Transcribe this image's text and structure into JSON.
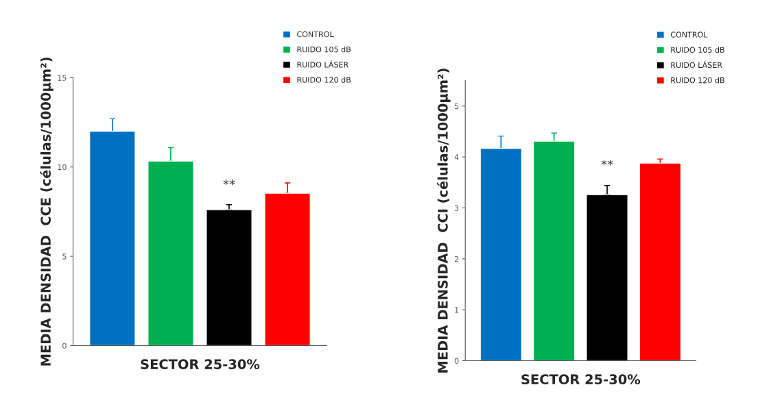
{
  "chart_data": [
    {
      "type": "bar",
      "categories": [
        null
      ],
      "xlabel": "SECTOR 25-30%",
      "ylabel": "MEDIA DENSIDAD  CCE (células/1000µm²)",
      "ylim": [
        0,
        15
      ],
      "yticks": [
        0,
        5,
        10,
        15
      ],
      "legend": "top right",
      "grid": false,
      "annotations": [
        "**"
      ],
      "series": [
        {
          "name": "CONTROL",
          "color": "#0070c0",
          "values": [
            12.0
          ],
          "errors": [
            0.7
          ]
        },
        {
          "name": "RUIDO 105 dB",
          "color": "#00b050",
          "values": [
            10.33
          ],
          "errors": [
            0.75
          ]
        },
        {
          "name": "RUIDO LÁSER",
          "color": "#000000",
          "values": [
            7.61
          ],
          "errors": [
            0.28
          ]
        },
        {
          "name": "RUIDO 120 dB",
          "color": "#ff0000",
          "values": [
            8.53
          ],
          "errors": [
            0.58
          ]
        }
      ]
    },
    {
      "type": "bar",
      "categories": [
        null
      ],
      "xlabel": "SECTOR 25-30%",
      "ylabel": "MEDIA DENSIDAD  CCI (células/1000µm²)",
      "ylim": [
        0,
        5.5
      ],
      "yticks": [
        0,
        1,
        2,
        3,
        4,
        5
      ],
      "legend": "top right",
      "grid": false,
      "annotations": [
        "**"
      ],
      "series": [
        {
          "name": "CONTROL",
          "color": "#0070c0",
          "values": [
            4.17
          ],
          "errors": [
            0.24
          ]
        },
        {
          "name": "RUIDO 105 dB",
          "color": "#00b050",
          "values": [
            4.31
          ],
          "errors": [
            0.16
          ]
        },
        {
          "name": "RUIDO LÁSER",
          "color": "#000000",
          "values": [
            3.26
          ],
          "errors": [
            0.18
          ]
        },
        {
          "name": "RUIDO 120 dB",
          "color": "#ff0000",
          "values": [
            3.88
          ],
          "errors": [
            0.08
          ]
        }
      ]
    }
  ]
}
